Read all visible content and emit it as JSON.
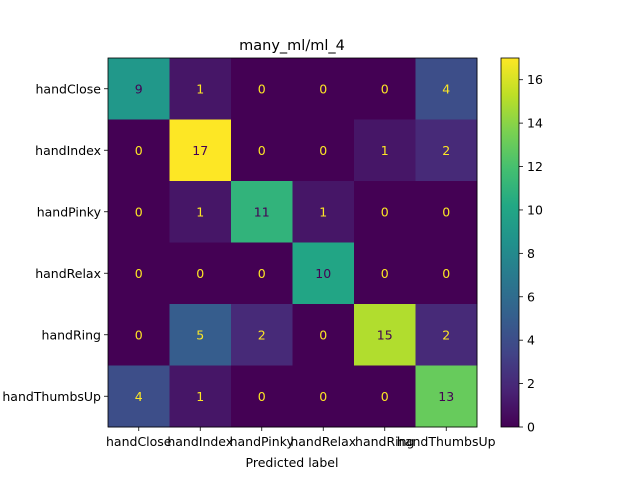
{
  "chart_data": {
    "type": "heatmap",
    "title": "many_ml/ml_4",
    "xlabel": "Predicted label",
    "ylabel": "",
    "x_categories": [
      "handClose",
      "handIndex",
      "handPinky",
      "handRelax",
      "handRing",
      "handThumbsUp"
    ],
    "y_categories": [
      "handClose",
      "handIndex",
      "handPinky",
      "handRelax",
      "handRing",
      "handThumbsUp"
    ],
    "matrix": [
      [
        9,
        1,
        0,
        0,
        0,
        4
      ],
      [
        0,
        17,
        0,
        0,
        1,
        2
      ],
      [
        0,
        1,
        11,
        1,
        0,
        0
      ],
      [
        0,
        0,
        0,
        10,
        0,
        0
      ],
      [
        0,
        5,
        2,
        0,
        15,
        2
      ],
      [
        4,
        1,
        0,
        0,
        0,
        13
      ]
    ],
    "colormap": "viridis",
    "value_range": [
      0,
      17
    ],
    "colorbar_ticks": [
      0,
      2,
      4,
      6,
      8,
      10,
      12,
      14,
      16
    ],
    "colorbar_tick_labels": [
      "0",
      "2",
      "4",
      "6",
      "8",
      "10",
      "12",
      "14",
      "16"
    ],
    "annotation_colors": {
      "low": "#fde725",
      "high": "#440154"
    },
    "grid": false
  }
}
